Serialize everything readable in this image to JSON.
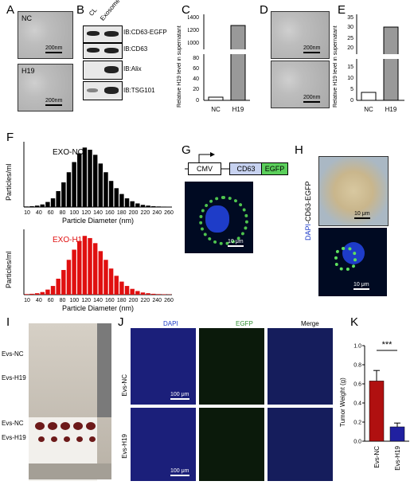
{
  "panels": {
    "A": {
      "label": "A",
      "nc": "NC",
      "h19": "H19",
      "scale": "200nm"
    },
    "B": {
      "label": "B",
      "col_cl": "CL",
      "col_exo": "Exosome",
      "blots": [
        "IB:CD63-EGFP",
        "IB:CD63",
        "IB:Alix",
        "IB:TSG101"
      ]
    },
    "C": {
      "label": "C",
      "ylabel": "Relative H19 level in supernatant",
      "yticks": [
        "0",
        "20",
        "40",
        "60",
        "80",
        "1000",
        "1200",
        "1400"
      ],
      "categories": [
        "NC",
        "H19"
      ]
    },
    "D": {
      "label": "D",
      "scale": "200nm"
    },
    "E": {
      "label": "E",
      "ylabel": "Relative H19 level in supernatant",
      "yticks": [
        "0",
        "5",
        "10",
        "15",
        "20",
        "25",
        "30",
        "35"
      ],
      "categories": [
        "NC",
        "H19"
      ]
    },
    "F": {
      "label": "F",
      "top_title": "EXO-NC",
      "bottom_title": "EXO-H19",
      "ylabel": "Particles/ml",
      "xlabel": "Particle Diameter (nm)",
      "xticks": [
        "10",
        "40",
        "60",
        "80",
        "100",
        "120",
        "140",
        "160",
        "180",
        "200",
        "220",
        "240",
        "260"
      ],
      "colors": {
        "nc": "#000000",
        "h19": "#e01010"
      }
    },
    "G": {
      "label": "G",
      "cmv": "CMV",
      "cd63": "CD63",
      "egfp": "EGFP",
      "scale": "10 μm"
    },
    "H": {
      "label": "H",
      "vlabel_dapi": "DAPI",
      "vlabel_rest": "-CD63-EGFP",
      "scale_top": "10 μm",
      "scale_bottom": "10 μm"
    },
    "I": {
      "label": "I",
      "row1": "Evs-NC",
      "row2": "Evs-H19",
      "row3": "Evs-NC",
      "row4": "Evs-H19"
    },
    "J": {
      "label": "J",
      "col1": "DAPI",
      "col2": "EGFP",
      "col3": "Merge",
      "row1": "Evs-NC",
      "row2": "Evs-H19",
      "scale1": "100 μm",
      "scale2": "100 μm"
    },
    "K": {
      "label": "K",
      "ylabel": "Tumor Weight (g)",
      "yticks": [
        "0.0",
        "0.2",
        "0.4",
        "0.6",
        "0.8",
        "1.0"
      ],
      "categories": [
        "Evs-NC",
        "Evs-H19"
      ],
      "sig": "***",
      "colors": {
        "nc": "#b01010",
        "h19": "#2020a0"
      }
    }
  },
  "chart_data": [
    {
      "panel": "C",
      "type": "bar",
      "categories": [
        "NC",
        "H19"
      ],
      "values": [
        1,
        1230
      ],
      "ylabel": "Relative H19 level in supernatant"
    },
    {
      "panel": "E",
      "type": "bar",
      "categories": [
        "NC",
        "H19"
      ],
      "values": [
        1,
        31
      ],
      "ylabel": "Relative H19 level in supernatant"
    },
    {
      "panel": "F-top",
      "type": "bar",
      "series": [
        {
          "name": "EXO-NC",
          "x": [
            10,
            20,
            30,
            40,
            50,
            60,
            70,
            80,
            90,
            100,
            110,
            120,
            130,
            140,
            150,
            160,
            170,
            180,
            190,
            200,
            210,
            220,
            230,
            240,
            250,
            260,
            270,
            280
          ],
          "values": [
            4,
            6,
            10,
            18,
            35,
            60,
            110,
            170,
            240,
            310,
            370,
            410,
            395,
            360,
            300,
            240,
            180,
            130,
            90,
            60,
            40,
            25,
            15,
            10,
            6,
            4,
            3,
            2
          ]
        }
      ],
      "xlabel": "Particle Diameter (nm)",
      "ylabel": "Particles/ml"
    },
    {
      "panel": "F-bottom",
      "type": "bar",
      "series": [
        {
          "name": "EXO-H19",
          "x": [
            10,
            20,
            30,
            40,
            50,
            60,
            70,
            80,
            90,
            100,
            110,
            120,
            130,
            140,
            150,
            160,
            170,
            180,
            190,
            200,
            210,
            220,
            230,
            240,
            250,
            260,
            270,
            280
          ],
          "values": [
            4,
            6,
            10,
            18,
            35,
            60,
            110,
            170,
            240,
            310,
            370,
            405,
            390,
            355,
            300,
            240,
            180,
            130,
            90,
            60,
            40,
            25,
            15,
            10,
            6,
            4,
            3,
            2
          ]
        }
      ],
      "xlabel": "Particle Diameter (nm)",
      "ylabel": "Particles/ml"
    },
    {
      "panel": "K",
      "type": "bar",
      "categories": [
        "Evs-NC",
        "Evs-H19"
      ],
      "values": [
        0.63,
        0.15
      ],
      "ylabel": "Tumor Weight (g)",
      "ylim": [
        0,
        1.0
      ]
    }
  ]
}
